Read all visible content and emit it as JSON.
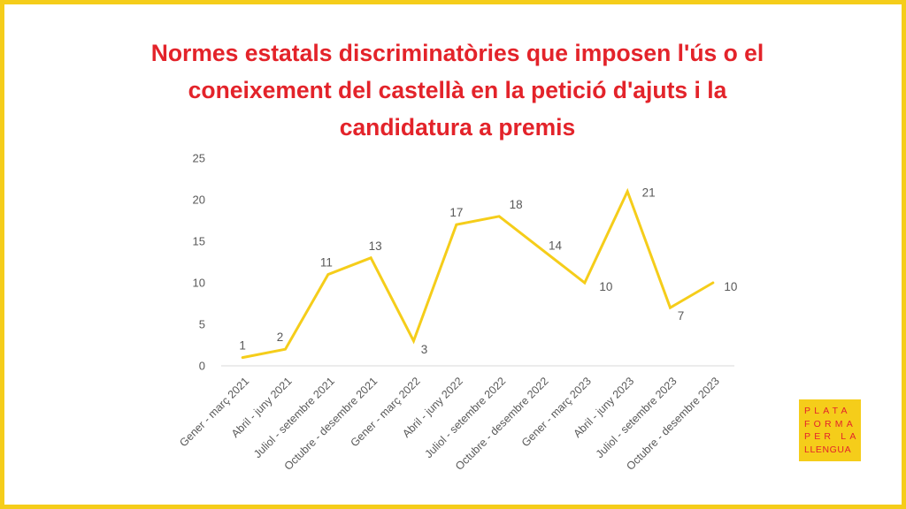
{
  "title_lines": [
    "Normes estatals discriminatòries que imposen l'ús o el",
    "coneixement del castellà en la petició d'ajuts i la",
    "candidatura a premis"
  ],
  "logo": {
    "lines": [
      "PLATA",
      "FORMA",
      "PER LA",
      "LLENGUA"
    ]
  },
  "colors": {
    "title": "#e3232a",
    "line": "#f5cd1a",
    "frame": "#f5cd1a",
    "axis_text": "#595959"
  },
  "chart_data": {
    "type": "line",
    "title": "Normes estatals discriminatòries que imposen l'ús o el coneixement del castellà en la petició d'ajuts i la candidatura a premis",
    "categories": [
      "Gener - març 2021",
      "Abril - juny 2021",
      "Juliol - setembre 2021",
      "Octubre - desembre 2021",
      "Gener - març 2022",
      "Abril - juny 2022",
      "Juliol - setembre 2022",
      "Octubre - desembre 2022",
      "Gener - març 2023",
      "Abril - juny 2023",
      "Juliol - setembre 2023",
      "Octubre - desembre 2023"
    ],
    "series": [
      {
        "values": [
          1,
          2,
          11,
          13,
          3,
          17,
          18,
          14,
          10,
          21,
          7,
          10
        ]
      }
    ],
    "ylim": [
      0,
      25
    ],
    "yticks": [
      0,
      5,
      10,
      15,
      20,
      25
    ],
    "grid": false,
    "legend": "none",
    "data_labels": true
  }
}
